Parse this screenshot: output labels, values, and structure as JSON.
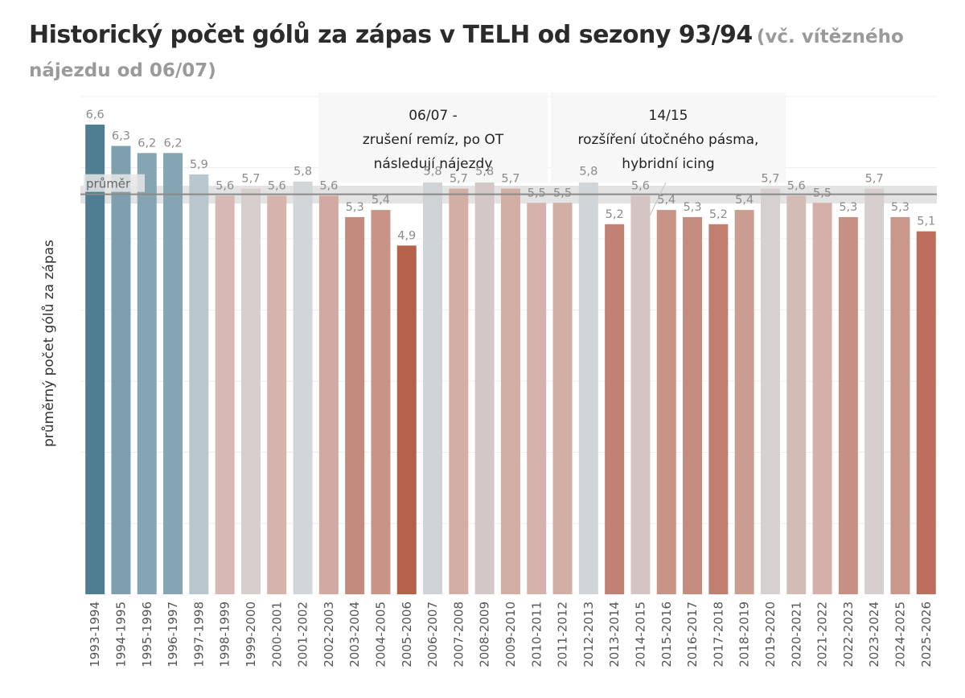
{
  "title": {
    "main": "Historický počet gólů za zápas v TELH od sezony 93/94",
    "note": "(vč. vítězného nájezdu od 06/07)"
  },
  "chart_data": {
    "type": "bar",
    "title": "Historický počet gólů za zápas v TELH od sezony 93/94 (vč. vítězného nájezdu od 06/07)",
    "xlabel": "",
    "ylabel": "průměrný počet gólů za zápas",
    "ylim": [
      0,
      7
    ],
    "grid": true,
    "categories": [
      "1993-1994",
      "1994-1995",
      "1995-1996",
      "1996-1997",
      "1997-1998",
      "1998-1999",
      "1999-2000",
      "2000-2001",
      "2001-2002",
      "2002-2003",
      "2003-2004",
      "2004-2005",
      "2005-2006",
      "2006-2007",
      "2007-2008",
      "2008-2009",
      "2009-2010",
      "2010-2011",
      "2011-2012",
      "2012-2013",
      "2013-2014",
      "2014-2015",
      "2015-2016",
      "2016-2017",
      "2017-2018",
      "2018-2019",
      "2019-2020",
      "2020-2021",
      "2021-2022",
      "2022-2023",
      "2023-2024",
      "2024-2025",
      "2025-2026"
    ],
    "values": [
      6.6,
      6.3,
      6.2,
      6.2,
      5.9,
      5.6,
      5.7,
      5.6,
      5.8,
      5.6,
      5.3,
      5.4,
      4.9,
      5.8,
      5.7,
      5.8,
      5.7,
      5.5,
      5.5,
      5.8,
      5.2,
      5.6,
      5.4,
      5.3,
      5.2,
      5.4,
      5.7,
      5.6,
      5.5,
      5.3,
      5.7,
      5.3,
      5.1
    ],
    "value_labels": [
      "6,6",
      "6,3",
      "6,2",
      "6,2",
      "5,9",
      "5,6",
      "5,7",
      "5,6",
      "5,8",
      "5,6",
      "5,3",
      "5,4",
      "4,9",
      "5,8",
      "5,7",
      "5,8",
      "5,7",
      "5,5",
      "5,5",
      "5,8",
      "5,2",
      "5,6",
      "5,4",
      "5,3",
      "5,2",
      "5,4",
      "5,7",
      "5,6",
      "5,5",
      "5,3",
      "5,7",
      "5,3",
      "5,1"
    ],
    "colors": [
      "#4f7e92",
      "#7e9fae",
      "#86a5b3",
      "#86a5b3",
      "#b8c7ce",
      "#d8b8b2",
      "#d6cfce",
      "#d4b4ad",
      "#d2d6d9",
      "#d1a9a0",
      "#c48a7d",
      "#c99488",
      "#b6614a",
      "#cfd3d6",
      "#d2aea5",
      "#d4c8c6",
      "#d2aea5",
      "#d3b3ac",
      "#d2aea5",
      "#d2d5d8",
      "#c18274",
      "#d5c5c2",
      "#c99488",
      "#c48c7f",
      "#c17f70",
      "#cb9d91",
      "#d6d1d0",
      "#d3bcb6",
      "#d3b1aa",
      "#c69184",
      "#d6cfce",
      "#c9978b",
      "#bc6f5c"
    ],
    "average": {
      "label": "průměr",
      "value": 5.62,
      "band": [
        5.49,
        5.74
      ]
    },
    "annotations": [
      {
        "lines": [
          "06/07 -",
          "zrušení remíz, po OT",
          "následují nájezdy"
        ]
      },
      {
        "lines": [
          "14/15",
          "rozšíření útočného pásma,",
          "hybridní icing"
        ]
      }
    ]
  }
}
